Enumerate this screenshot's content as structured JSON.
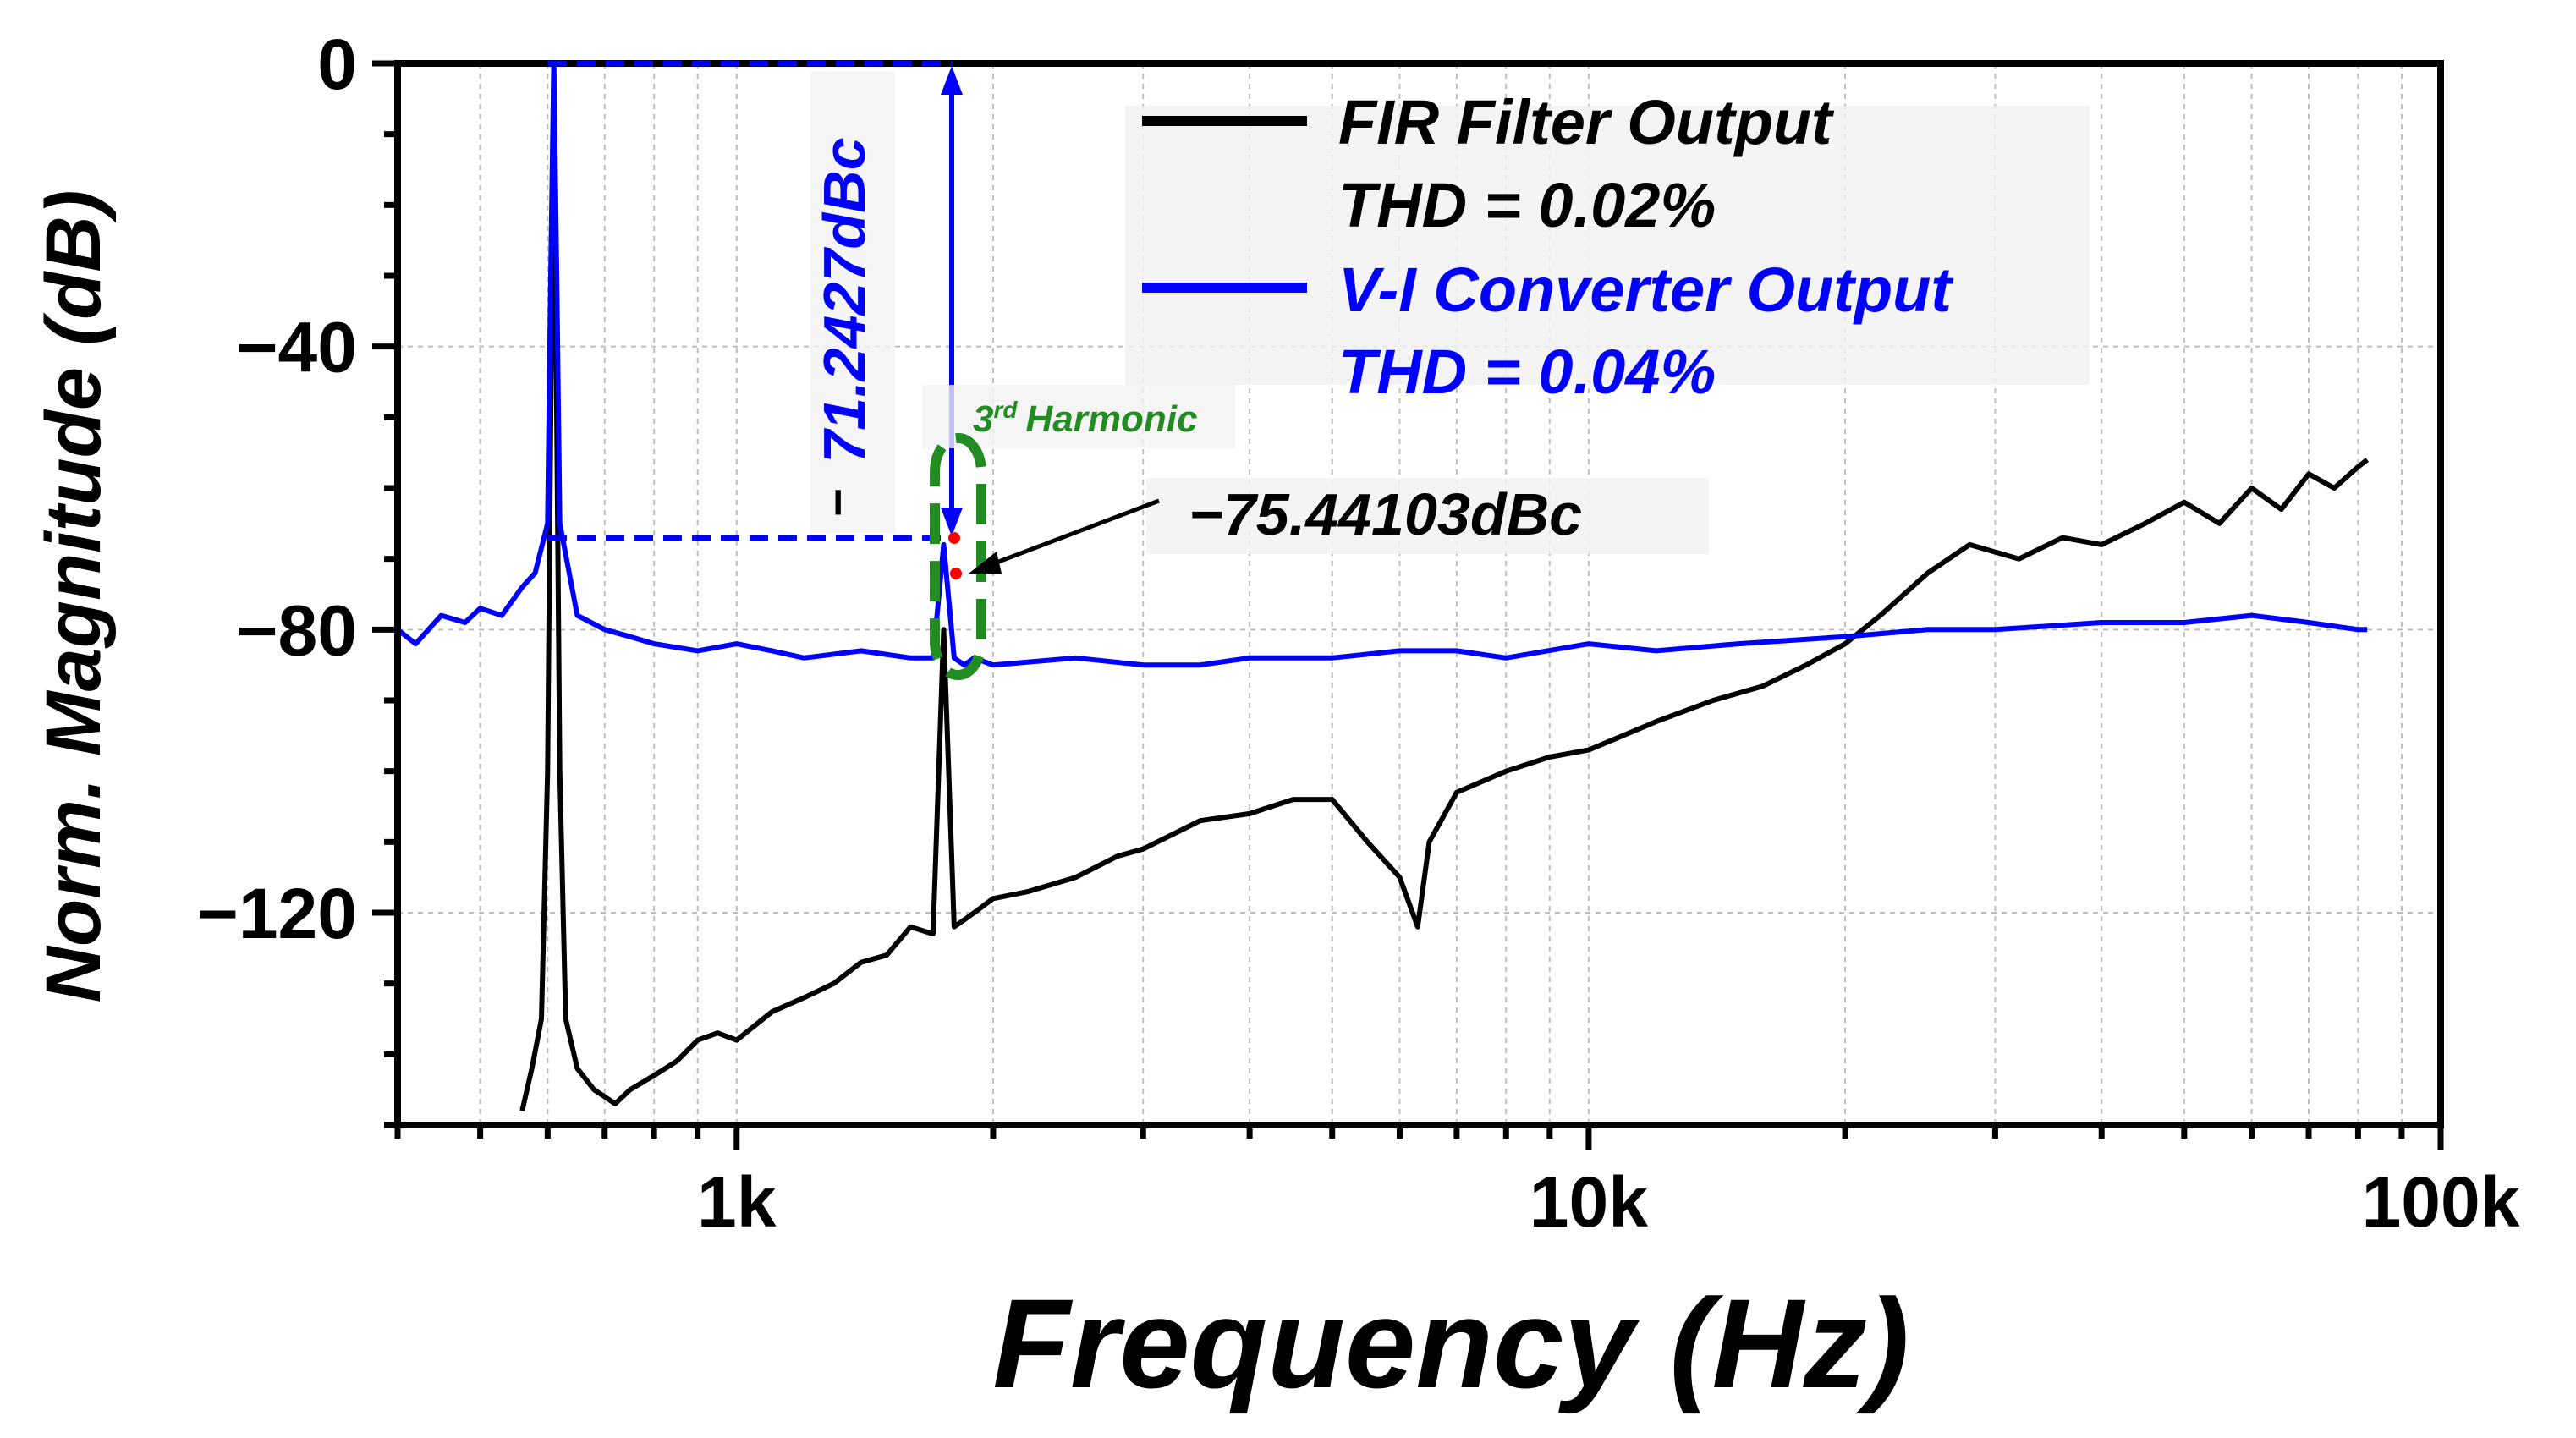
{
  "chart_data": {
    "type": "line",
    "title": "",
    "xlabel": "Frequency (Hz)",
    "ylabel": "Norm. Magnitude (dB)",
    "xscale": "log",
    "xlim": [
      400,
      100000
    ],
    "ylim": [
      -150,
      0
    ],
    "grid": true,
    "x_ticks": [
      {
        "value": 1000,
        "label": "1k"
      },
      {
        "value": 10000,
        "label": "10k"
      },
      {
        "value": 100000,
        "label": "100k"
      }
    ],
    "y_ticks": [
      {
        "value": 0,
        "label": "0"
      },
      {
        "value": -40,
        "label": "−40"
      },
      {
        "value": -80,
        "label": "−80"
      },
      {
        "value": -120,
        "label": "−120"
      }
    ],
    "series": [
      {
        "name": "FIR Filter Output",
        "thd_label": "THD = 0.02%",
        "color": "#000000",
        "x": [
          560,
          575,
          590,
          600,
          605,
          610,
          615,
          620,
          630,
          650,
          680,
          700,
          720,
          750,
          800,
          850,
          900,
          950,
          1000,
          1100,
          1200,
          1300,
          1400,
          1500,
          1600,
          1700,
          1750,
          1800,
          1850,
          1900,
          2000,
          2200,
          2500,
          2800,
          3000,
          3500,
          4000,
          4500,
          5000,
          5500,
          6000,
          6300,
          6500,
          7000,
          8000,
          9000,
          10000,
          12000,
          14000,
          16000,
          18000,
          20000,
          22000,
          25000,
          28000,
          32000,
          36000,
          40000,
          45000,
          50000,
          55000,
          60000,
          65000,
          70000,
          75000,
          80000,
          82000
        ],
        "y": [
          -148,
          -142,
          -135,
          -100,
          -50,
          0,
          -50,
          -100,
          -135,
          -142,
          -145,
          -146,
          -147,
          -145,
          -143,
          -141,
          -138,
          -137,
          -138,
          -134,
          -132,
          -130,
          -127,
          -126,
          -122,
          -123,
          -80,
          -122,
          -121,
          -120,
          -118,
          -117,
          -115,
          -112,
          -111,
          -107,
          -106,
          -104,
          -104,
          -110,
          -115,
          -122,
          -110,
          -103,
          -100,
          -98,
          -97,
          -93,
          -90,
          -88,
          -85,
          -82,
          -78,
          -72,
          -68,
          -70,
          -67,
          -68,
          -65,
          -62,
          -65,
          -60,
          -63,
          -58,
          -60,
          -57,
          -56
        ]
      },
      {
        "name": "V-I Converter Output",
        "thd_label": "THD = 0.04%",
        "color": "#0000ff",
        "x": [
          400,
          420,
          450,
          480,
          500,
          530,
          560,
          580,
          600,
          605,
          610,
          615,
          620,
          650,
          700,
          750,
          800,
          900,
          1000,
          1100,
          1200,
          1400,
          1600,
          1700,
          1750,
          1800,
          1850,
          1900,
          2000,
          2500,
          3000,
          3500,
          4000,
          5000,
          6000,
          7000,
          8000,
          10000,
          12000,
          15000,
          20000,
          25000,
          30000,
          40000,
          50000,
          60000,
          70000,
          80000,
          82000
        ],
        "y": [
          -80,
          -82,
          -78,
          -79,
          -77,
          -78,
          -74,
          -72,
          -65,
          -30,
          0,
          -30,
          -65,
          -78,
          -80,
          -81,
          -82,
          -83,
          -82,
          -83,
          -84,
          -83,
          -84,
          -84,
          -68,
          -84,
          -85,
          -84,
          -85,
          -84,
          -85,
          -85,
          -84,
          -84,
          -83,
          -83,
          -84,
          -82,
          -83,
          -82,
          -81,
          -80,
          -80,
          -79,
          -79,
          -78,
          -79,
          -80,
          -80
        ]
      }
    ],
    "annotations": {
      "fundamental_delta": "71.2427dBc",
      "third_harmonic_label": "3",
      "third_harmonic_superscript": "rd",
      "third_harmonic_text": "Harmonic",
      "third_harmonic_fir": "−75.44103dBc",
      "minus_sign": "−"
    }
  }
}
